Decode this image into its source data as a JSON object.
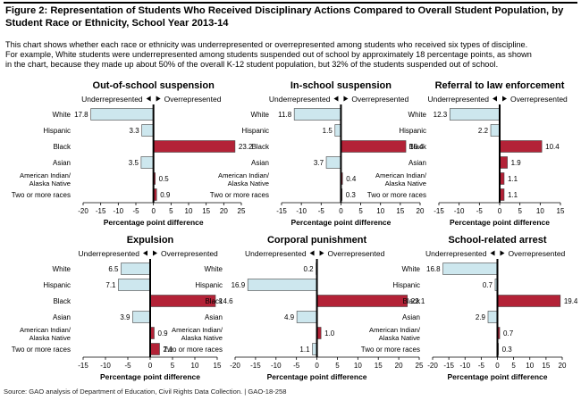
{
  "title": "Figure 2: Representation of Students Who Received Disciplinary Actions Compared to Overall Student Population, by Student Race or Ethnicity, School Year 2013-14",
  "description": [
    "This chart shows whether each race or ethnicity was underrepresented or overrepresented among students who received six types of discipline.",
    "For example, White students were underrepresented among students suspended out of school by approximately 18 percentage points, as shown",
    "in the chart, because they made up about 50% of the overall K-12 student population, but 32% of the students suspended out of school."
  ],
  "source": "Source: GAO analysis of Department of Education, Civil Rights Data Collection.  |  GAO-18-258",
  "colors": {
    "under": "#cde7ee",
    "over": "#b32237",
    "axis": "#000000"
  },
  "chart_data": [
    {
      "type": "bar",
      "title": "Out-of-school suspension",
      "legend": {
        "under": "Underrepresented",
        "over": "Overrepresented"
      },
      "categories": [
        "White",
        "Hispanic",
        "Black",
        "Asian",
        "American Indian/ Alaska Native",
        "Two or more races"
      ],
      "values": [
        -17.8,
        -3.3,
        23.2,
        -3.5,
        0.5,
        0.9
      ],
      "value_labels": [
        "17.8",
        "3.3",
        "23.2",
        "3.5",
        "0.5",
        "0.9"
      ],
      "xlim": [
        -20,
        25
      ],
      "xticks": [
        -20,
        -15,
        -10,
        -5,
        0,
        5,
        10,
        15,
        20,
        25
      ],
      "xlabel": "Percentage point difference"
    },
    {
      "type": "bar",
      "title": "In-school suspension",
      "legend": {
        "under": "Underrepresented",
        "over": "Overrepresented"
      },
      "categories": [
        "White",
        "Hispanic",
        "Black",
        "Asian",
        "American Indian/ Alaska Native",
        "Two or more races"
      ],
      "values": [
        -11.8,
        -1.5,
        16.4,
        -3.7,
        0.4,
        0.3
      ],
      "value_labels": [
        "11.8",
        "1.5",
        "16.4",
        "3.7",
        "0.4",
        "0.3"
      ],
      "xlim": [
        -15,
        20
      ],
      "xticks": [
        -15,
        -10,
        -5,
        0,
        5,
        10,
        15,
        20
      ],
      "xlabel": "Percentage point difference"
    },
    {
      "type": "bar",
      "title": "Referral to law enforcement",
      "legend": {
        "under": "Underrepresented",
        "over": "Overrepresented"
      },
      "categories": [
        "White",
        "Hispanic",
        "Black",
        "Asian",
        "American Indian/ Alaska Native",
        "Two or more races"
      ],
      "values": [
        -12.3,
        -2.2,
        10.4,
        1.9,
        1.1,
        1.1
      ],
      "value_labels": [
        "12.3",
        "2.2",
        "10.4",
        "1.9",
        "1.1",
        "1.1"
      ],
      "xlim": [
        -15,
        15
      ],
      "xticks": [
        -15,
        -10,
        -5,
        0,
        5,
        10,
        15
      ],
      "xlabel": "Percentage point difference"
    },
    {
      "type": "bar",
      "title": "Expulsion",
      "legend": {
        "under": "Underrepresented",
        "over": "Overrepresented"
      },
      "categories": [
        "White",
        "Hispanic",
        "Black",
        "Asian",
        "American Indian/ Alaska Native",
        "Two or more races"
      ],
      "values": [
        -6.5,
        -7.1,
        14.6,
        -3.9,
        0.9,
        2.1
      ],
      "value_labels": [
        "6.5",
        "7.1",
        "14.6",
        "3.9",
        "0.9",
        "2.1"
      ],
      "xlim": [
        -15,
        15
      ],
      "xticks": [
        -15,
        -10,
        -5,
        0,
        5,
        10,
        15
      ],
      "xlabel": "Percentage point difference"
    },
    {
      "type": "bar",
      "title": "Corporal punishment",
      "legend": {
        "under": "Underrepresented",
        "over": "Overrepresented"
      },
      "categories": [
        "White",
        "Hispanic",
        "Black",
        "Asian",
        "American Indian/ Alaska Native",
        "Two or more races"
      ],
      "values": [
        -0.2,
        -16.9,
        22.1,
        -4.9,
        1.0,
        -1.1
      ],
      "value_labels": [
        "0.2",
        "16.9",
        "22.1",
        "4.9",
        "1.0",
        "1.1"
      ],
      "xlim": [
        -20,
        25
      ],
      "xticks": [
        -20,
        -15,
        -10,
        -5,
        0,
        5,
        10,
        15,
        20,
        25
      ],
      "xlabel": "Percentage point difference"
    },
    {
      "type": "bar",
      "title": "School-related arrest",
      "legend": {
        "under": "Underrepresented",
        "over": "Overrepresented"
      },
      "categories": [
        "White",
        "Hispanic",
        "Black",
        "Asian",
        "American Indian/ Alaska Native",
        "Two or more races"
      ],
      "values": [
        -16.8,
        -0.7,
        19.4,
        -2.9,
        0.7,
        0.3
      ],
      "value_labels": [
        "16.8",
        "0.7",
        "19.4",
        "2.9",
        "0.7",
        "0.3"
      ],
      "xlim": [
        -20,
        20
      ],
      "xticks": [
        -20,
        -15,
        -10,
        -5,
        0,
        5,
        10,
        15,
        20
      ],
      "xlabel": "Percentage point difference"
    }
  ]
}
